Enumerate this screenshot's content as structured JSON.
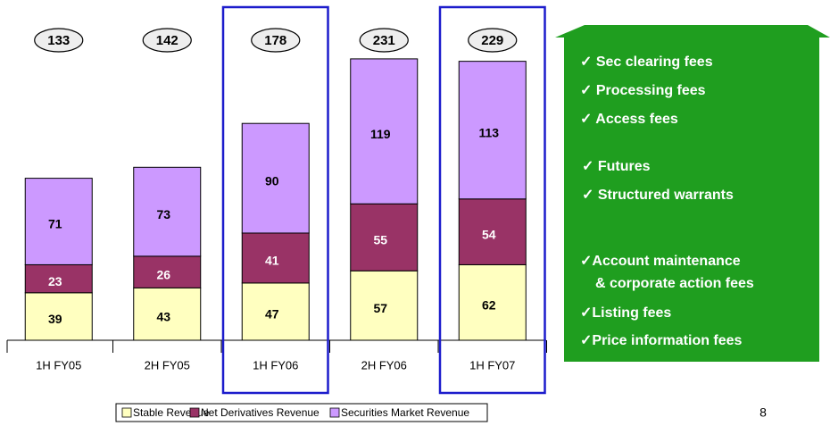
{
  "chart_data": {
    "type": "stacked_bar",
    "categories": [
      "1H FY05",
      "2H FY05",
      "1H FY06",
      "2H FY06",
      "1H FY07"
    ],
    "series": [
      {
        "name": "Stable Revenue",
        "color": "#ffffc0",
        "values": [
          39,
          43,
          47,
          57,
          62
        ]
      },
      {
        "name": "Net Derivatives Revenue",
        "color": "#993366",
        "values": [
          23,
          26,
          41,
          55,
          54
        ]
      },
      {
        "name": "Securities Market Revenue",
        "color": "#cc99ff",
        "values": [
          71,
          73,
          90,
          119,
          113
        ]
      }
    ],
    "totals": [
      133,
      142,
      178,
      231,
      229
    ],
    "highlighted_categories": [
      2,
      4
    ],
    "ylim": [
      0,
      250
    ],
    "legend": "bottom"
  },
  "sidebar": {
    "items": [
      "✓ Sec clearing fees",
      "✓ Processing fees",
      "✓ Access fees",
      "✓ Futures",
      "✓ Structured warrants",
      "✓Account maintenance",
      "& corporate action fees",
      "✓Listing fees",
      "✓Price information fees"
    ]
  },
  "page_number": "8"
}
